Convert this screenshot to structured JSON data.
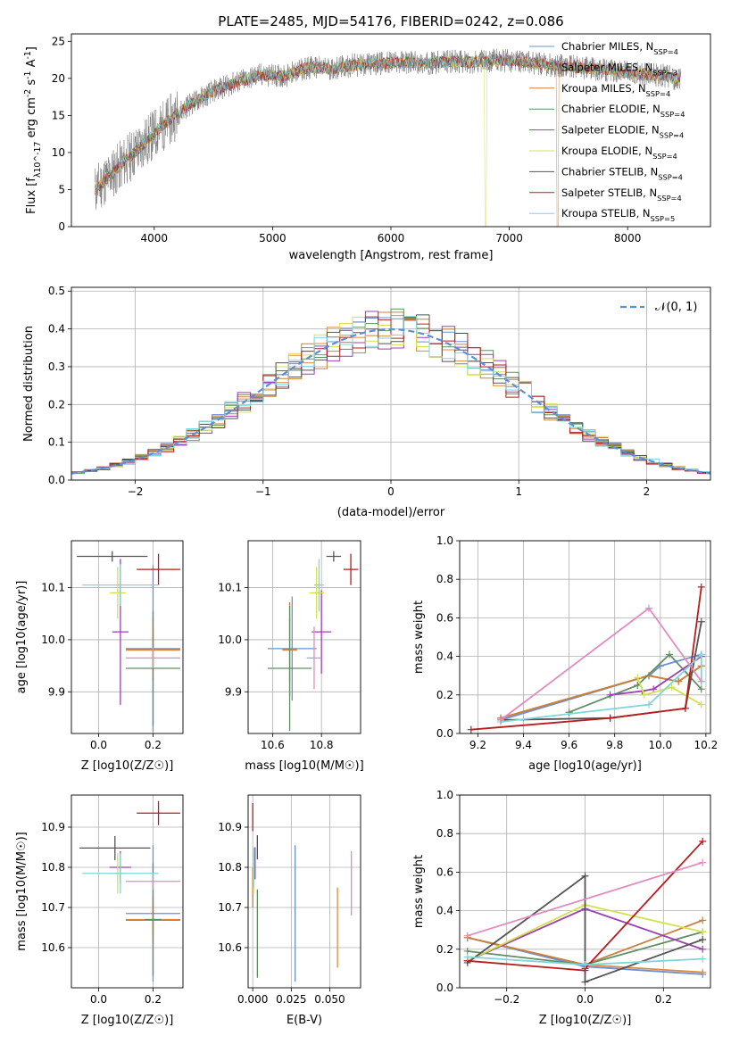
{
  "series_colors": [
    "#6b8fd6",
    "#e0893a",
    "#c9803a",
    "#5f8f62",
    "#9c3fb4",
    "#d4e04d",
    "#555555",
    "#b81d1d",
    "#7dd6dc",
    "#e38bbf"
  ],
  "chart_data": [
    {
      "type": "line",
      "panel": "spectrum",
      "title": "PLATE=2485, MJD=54176, FIBERID=0242, z=0.086",
      "xlabel": "wavelength [Angstrom, rest frame]",
      "ylabel": "Flux [f_λ10^-17 erg cm^-2 s^-1 A^-1]",
      "xlim": [
        3300,
        8700
      ],
      "ylim": [
        0,
        26
      ],
      "xticks": [
        "4000",
        "5000",
        "6000",
        "7000",
        "8000"
      ],
      "yticks": [
        "0",
        "5",
        "10",
        "15",
        "20",
        "25"
      ],
      "grid": false,
      "legend_position": "right",
      "series": [
        {
          "name": "Chabrier MILES, N_SSP=4",
          "color": "#6b8fd6"
        },
        {
          "name": "Salpeter MILES, N_SSP=3",
          "color": "#e0893a"
        },
        {
          "name": "Kroupa MILES, N_SSP=4",
          "color": "#c9803a"
        },
        {
          "name": "Chabrier ELODIE, N_SSP=4",
          "color": "#5f8f62"
        },
        {
          "name": "Salpeter ELODIE, N_SSP=4",
          "color": "#9c3fb4"
        },
        {
          "name": "Kroupa ELODIE, N_SSP=4",
          "color": "#d4e04d"
        },
        {
          "name": "Chabrier STELIB, N_SSP=4",
          "color": "#555555"
        },
        {
          "name": "Salpeter STELIB, N_SSP=4",
          "color": "#b81d1d"
        },
        {
          "name": "Kroupa STELIB, N_SSP=5",
          "color": "#7dd6dc"
        }
      ],
      "continuum": {
        "x": [
          3500,
          3700,
          3900,
          4100,
          4300,
          4500,
          4700,
          4900,
          5100,
          5300,
          5500,
          5700,
          5900,
          6100,
          6300,
          6500,
          6700,
          6900,
          7100,
          7300,
          7500,
          7700,
          7900,
          8100,
          8300,
          8450
        ],
        "y": [
          5,
          8,
          11,
          14,
          16.5,
          18.3,
          19.5,
          20.5,
          20.3,
          21.5,
          21.3,
          21.8,
          22.0,
          22.2,
          22.0,
          22.3,
          22.2,
          22.5,
          22.3,
          21.9,
          21.6,
          21.3,
          21.0,
          20.6,
          20.4,
          19.8
        ]
      }
    },
    {
      "type": "histogram",
      "panel": "residuals",
      "xlabel": "(data-model)/error",
      "ylabel": "Normed distribution",
      "xlim": [
        -2.5,
        2.5
      ],
      "ylim": [
        0,
        0.51
      ],
      "xticks": [
        "−2",
        "−1",
        "0",
        "1",
        "2"
      ],
      "yticks": [
        "0.0",
        "0.1",
        "0.2",
        "0.3",
        "0.4",
        "0.5"
      ],
      "grid": true,
      "legend_position": "top-right",
      "legend": "𝒩(0, 1)",
      "bin_width": 0.1,
      "curve": {
        "type": "gaussian",
        "mean": 0,
        "sigma": 1
      }
    },
    {
      "type": "scatter",
      "panel": "age-vs-Z",
      "xlabel": "Z [log10(Z/Z☉)]",
      "ylabel": "age [log10(age/yr)]",
      "xlim": [
        -0.1,
        0.31
      ],
      "ylim": [
        9.82,
        10.19
      ],
      "xticks": [
        "0.0",
        "0.2"
      ],
      "yticks": [
        "9.9",
        "10.0",
        "10.1"
      ],
      "grid": true,
      "points": [
        {
          "x": 0.2,
          "y": 9.983,
          "xerr": 0.1,
          "yerr": 0.16,
          "color": "#6b8fd6"
        },
        {
          "x": 0.2,
          "y": 9.98,
          "xerr": 0.1,
          "yerr": 0.04,
          "color": "#e0893a"
        },
        {
          "x": 0.2,
          "y": 9.982,
          "xerr": 0.1,
          "yerr": 0.06,
          "color": "#c9803a"
        },
        {
          "x": 0.2,
          "y": 9.945,
          "xerr": 0.1,
          "yerr": 0.11,
          "color": "#5f8f62"
        },
        {
          "x": 0.08,
          "y": 10.015,
          "xerr": 0.03,
          "yerr": 0.14,
          "color": "#9c3fb4"
        },
        {
          "x": 0.07,
          "y": 10.09,
          "xerr": 0.03,
          "yerr": 0.05,
          "color": "#d4e04d"
        },
        {
          "x": 0.05,
          "y": 10.16,
          "xerr": 0.13,
          "yerr": 0.01,
          "color": "#555555"
        },
        {
          "x": 0.22,
          "y": 10.135,
          "xerr": 0.08,
          "yerr": 0.03,
          "color": "#b81d1d"
        },
        {
          "x": 0.08,
          "y": 10.105,
          "xerr": 0.14,
          "yerr": 0.04,
          "color": "#7dd6dc"
        },
        {
          "x": 0.2,
          "y": 9.965,
          "xerr": 0.1,
          "yerr": 0.02,
          "color": "#e38bbf"
        }
      ]
    },
    {
      "type": "scatter",
      "panel": "age-vs-mass",
      "xlabel": "mass [log10(M/M☉)]",
      "xlim": [
        10.5,
        10.96
      ],
      "ylim": [
        9.82,
        10.19
      ],
      "xticks": [
        "10.6",
        "10.8"
      ],
      "yticks": [
        "9.9",
        "10.0",
        "10.1"
      ],
      "grid": true,
      "points": [
        {
          "x": 10.68,
          "y": 9.983,
          "xerr": 0.1,
          "yerr": 0.1,
          "color": "#6b8fd6"
        },
        {
          "x": 10.67,
          "y": 9.98,
          "xerr": 0.03,
          "yerr": 0.06,
          "color": "#e0893a"
        },
        {
          "x": 10.67,
          "y": 9.982,
          "xerr": 0.03,
          "yerr": 0.09,
          "color": "#c9803a"
        },
        {
          "x": 10.67,
          "y": 9.945,
          "xerr": 0.09,
          "yerr": 0.12,
          "color": "#5f8f62"
        },
        {
          "x": 10.8,
          "y": 10.015,
          "xerr": 0.04,
          "yerr": 0.08,
          "color": "#9c3fb4"
        },
        {
          "x": 10.78,
          "y": 10.09,
          "xerr": 0.03,
          "yerr": 0.05,
          "color": "#d4e04d"
        },
        {
          "x": 10.85,
          "y": 10.16,
          "xerr": 0.03,
          "yerr": 0.01,
          "color": "#555555"
        },
        {
          "x": 10.92,
          "y": 10.135,
          "xerr": 0.03,
          "yerr": 0.03,
          "color": "#b81d1d"
        },
        {
          "x": 10.79,
          "y": 10.105,
          "xerr": 0.02,
          "yerr": 0.05,
          "color": "#7dd6dc"
        },
        {
          "x": 10.77,
          "y": 9.965,
          "xerr": 0.03,
          "yerr": 0.06,
          "color": "#e38bbf"
        }
      ]
    },
    {
      "type": "line",
      "panel": "weight-vs-age",
      "xlabel": "age [log10(age/yr)]",
      "ylabel": "mass weight",
      "xlim": [
        9.12,
        10.22
      ],
      "ylim": [
        0,
        1
      ],
      "xticks": [
        "9.2",
        "9.4",
        "9.6",
        "9.8",
        "10.0",
        "10.2"
      ],
      "yticks": [
        "0.0",
        "0.2",
        "0.4",
        "0.6",
        "0.8",
        "1.0"
      ],
      "grid": true,
      "series": [
        {
          "color": "#6b8fd6",
          "x": [
            9.3,
            9.95,
            10.0,
            10.18
          ],
          "y": [
            0.07,
            0.3,
            0.35,
            0.41
          ]
        },
        {
          "color": "#e0893a",
          "x": [
            9.3,
            9.95,
            10.08,
            10.18
          ],
          "y": [
            0.08,
            0.3,
            0.27,
            0.35
          ]
        },
        {
          "color": "#c9803a",
          "x": [
            9.3,
            9.95,
            10.08,
            10.18
          ],
          "y": [
            0.08,
            0.3,
            0.27,
            0.35
          ]
        },
        {
          "color": "#5f8f62",
          "x": [
            9.6,
            9.9,
            10.04,
            10.18
          ],
          "y": [
            0.11,
            0.25,
            0.41,
            0.23
          ]
        },
        {
          "color": "#9c3fb4",
          "x": [
            9.78,
            9.92,
            9.97,
            10.18
          ],
          "y": [
            0.2,
            0.22,
            0.23,
            0.4
          ]
        },
        {
          "color": "#d4e04d",
          "x": [
            9.9,
            9.93,
            10.05,
            10.18
          ],
          "y": [
            0.29,
            0.2,
            0.24,
            0.15
          ]
        },
        {
          "color": "#555555",
          "x": [
            9.3,
            9.78,
            10.11,
            10.18
          ],
          "y": [
            0.07,
            0.08,
            0.13,
            0.58
          ]
        },
        {
          "color": "#b81d1d",
          "x": [
            9.17,
            9.78,
            10.11,
            10.18
          ],
          "y": [
            0.02,
            0.08,
            0.13,
            0.76
          ]
        },
        {
          "color": "#7dd6dc",
          "x": [
            9.3,
            9.95,
            10.18,
            10.18
          ],
          "y": [
            0.06,
            0.15,
            0.41,
            0.27
          ]
        },
        {
          "color": "#e38bbf",
          "x": [
            9.3,
            9.95,
            10.18
          ],
          "y": [
            0.07,
            0.65,
            0.27
          ]
        }
      ]
    },
    {
      "type": "scatter",
      "panel": "mass-vs-Z",
      "xlabel": "Z [log10(Z/Z☉)]",
      "ylabel": "mass [log10(M/M☉)]",
      "xlim": [
        -0.1,
        0.31
      ],
      "ylim": [
        10.5,
        10.98
      ],
      "xticks": [
        "0.0",
        "0.2"
      ],
      "yticks": [
        "10.6",
        "10.7",
        "10.8",
        "10.9"
      ],
      "grid": true,
      "points": [
        {
          "x": 0.2,
          "y": 10.685,
          "xerr": 0.1,
          "yerr": 0.17,
          "color": "#6b8fd6"
        },
        {
          "x": 0.2,
          "y": 10.67,
          "xerr": 0.1,
          "yerr": 0.04,
          "color": "#e0893a"
        },
        {
          "x": 0.2,
          "y": 10.668,
          "xerr": 0.1,
          "yerr": 0.06,
          "color": "#c9803a"
        },
        {
          "x": 0.2,
          "y": 10.67,
          "xerr": 0.03,
          "yerr": 0.14,
          "color": "#5f8f62"
        },
        {
          "x": 0.08,
          "y": 10.8,
          "xerr": 0.04,
          "yerr": 0.04,
          "color": "#9c3fb4"
        },
        {
          "x": 0.07,
          "y": 10.785,
          "xerr": 0.03,
          "yerr": 0.05,
          "color": "#d4e04d"
        },
        {
          "x": 0.06,
          "y": 10.848,
          "xerr": 0.13,
          "yerr": 0.03,
          "color": "#555555"
        },
        {
          "x": 0.22,
          "y": 10.935,
          "xerr": 0.08,
          "yerr": 0.03,
          "color": "#b81d1d"
        },
        {
          "x": 0.08,
          "y": 10.785,
          "xerr": 0.14,
          "yerr": 0.05,
          "color": "#7dd6dc"
        },
        {
          "x": 0.2,
          "y": 10.765,
          "xerr": 0.1,
          "yerr": 0.02,
          "color": "#e38bbf"
        }
      ]
    },
    {
      "type": "scatter",
      "panel": "mass-vs-EBV",
      "xlabel": "E(B-V)",
      "xlim": [
        -0.003,
        0.07
      ],
      "ylim": [
        10.5,
        10.98
      ],
      "xticks": [
        "0.000",
        "0.025",
        "0.050"
      ],
      "yticks": [
        "10.6",
        "10.7",
        "10.8",
        "10.9"
      ],
      "grid": true,
      "points": [
        {
          "x": 0.0275,
          "y": 10.685,
          "xerr": 0,
          "yerr": 0.17,
          "color": "#6b8fd6"
        },
        {
          "x": 0.055,
          "y": 10.65,
          "xerr": 0,
          "yerr": 0.1,
          "color": "#e0893a"
        },
        {
          "x": 0.0,
          "y": 10.75,
          "xerr": 0,
          "yerr": 0.05,
          "color": "#c9803a"
        },
        {
          "x": 0.003,
          "y": 10.635,
          "xerr": 0,
          "yerr": 0.11,
          "color": "#5f8f62"
        },
        {
          "x": 0.0015,
          "y": 10.81,
          "xerr": 0,
          "yerr": 0.04,
          "color": "#9c3fb4"
        },
        {
          "x": 0.0005,
          "y": 10.785,
          "xerr": 0,
          "yerr": 0.05,
          "color": "#d4e04d"
        },
        {
          "x": 0.003,
          "y": 10.85,
          "xerr": 0,
          "yerr": 0.03,
          "color": "#555555"
        },
        {
          "x": 0.0,
          "y": 10.925,
          "xerr": 0,
          "yerr": 0.035,
          "color": "#b81d1d"
        },
        {
          "x": 0.0005,
          "y": 10.8,
          "xerr": 0,
          "yerr": 0.05,
          "color": "#7dd6dc"
        },
        {
          "x": 0.064,
          "y": 10.76,
          "xerr": 0,
          "yerr": 0.08,
          "color": "#e38bbf"
        }
      ]
    },
    {
      "type": "line",
      "panel": "weight-vs-Z",
      "xlabel": "Z [log10(Z/Z☉)]",
      "ylabel": "mass weight",
      "xlim": [
        -0.32,
        0.32
      ],
      "ylim": [
        0,
        1
      ],
      "xticks": [
        "−0.2",
        "0.0",
        "0.2"
      ],
      "yticks": [
        "0.0",
        "0.2",
        "0.4",
        "0.6",
        "0.8",
        "1.0"
      ],
      "grid": true,
      "series": [
        {
          "color": "#6b8fd6",
          "x": [
            -0.3,
            0.0,
            0.3
          ],
          "y": [
            0.26,
            0.11,
            0.07
          ]
        },
        {
          "color": "#e0893a",
          "x": [
            -0.3,
            0.0,
            0.3
          ],
          "y": [
            0.26,
            0.12,
            0.08
          ]
        },
        {
          "color": "#c9803a",
          "x": [
            -0.3,
            0.0,
            0.3
          ],
          "y": [
            0.26,
            0.12,
            0.35
          ]
        },
        {
          "color": "#5f8f62",
          "x": [
            -0.3,
            0.0,
            0.3
          ],
          "y": [
            0.19,
            0.12,
            0.29
          ]
        },
        {
          "color": "#9c3fb4",
          "x": [
            -0.3,
            0.0,
            0.3
          ],
          "y": [
            0.14,
            0.41,
            0.2
          ]
        },
        {
          "color": "#d4e04d",
          "x": [
            -0.3,
            0.0,
            0.3
          ],
          "y": [
            0.14,
            0.43,
            0.29
          ]
        },
        {
          "color": "#555555",
          "x": [
            -0.3,
            0.0,
            0.0,
            0.3
          ],
          "y": [
            0.13,
            0.58,
            0.03,
            0.25
          ]
        },
        {
          "color": "#b81d1d",
          "x": [
            -0.3,
            0.0,
            0.0,
            0.3
          ],
          "y": [
            0.14,
            0.09,
            0.1,
            0.76
          ]
        },
        {
          "color": "#7dd6dc",
          "x": [
            -0.3,
            0.0,
            0.3
          ],
          "y": [
            0.16,
            0.12,
            0.15
          ]
        },
        {
          "color": "#e38bbf",
          "x": [
            -0.3,
            0.3
          ],
          "y": [
            0.27,
            0.65
          ]
        }
      ]
    }
  ]
}
